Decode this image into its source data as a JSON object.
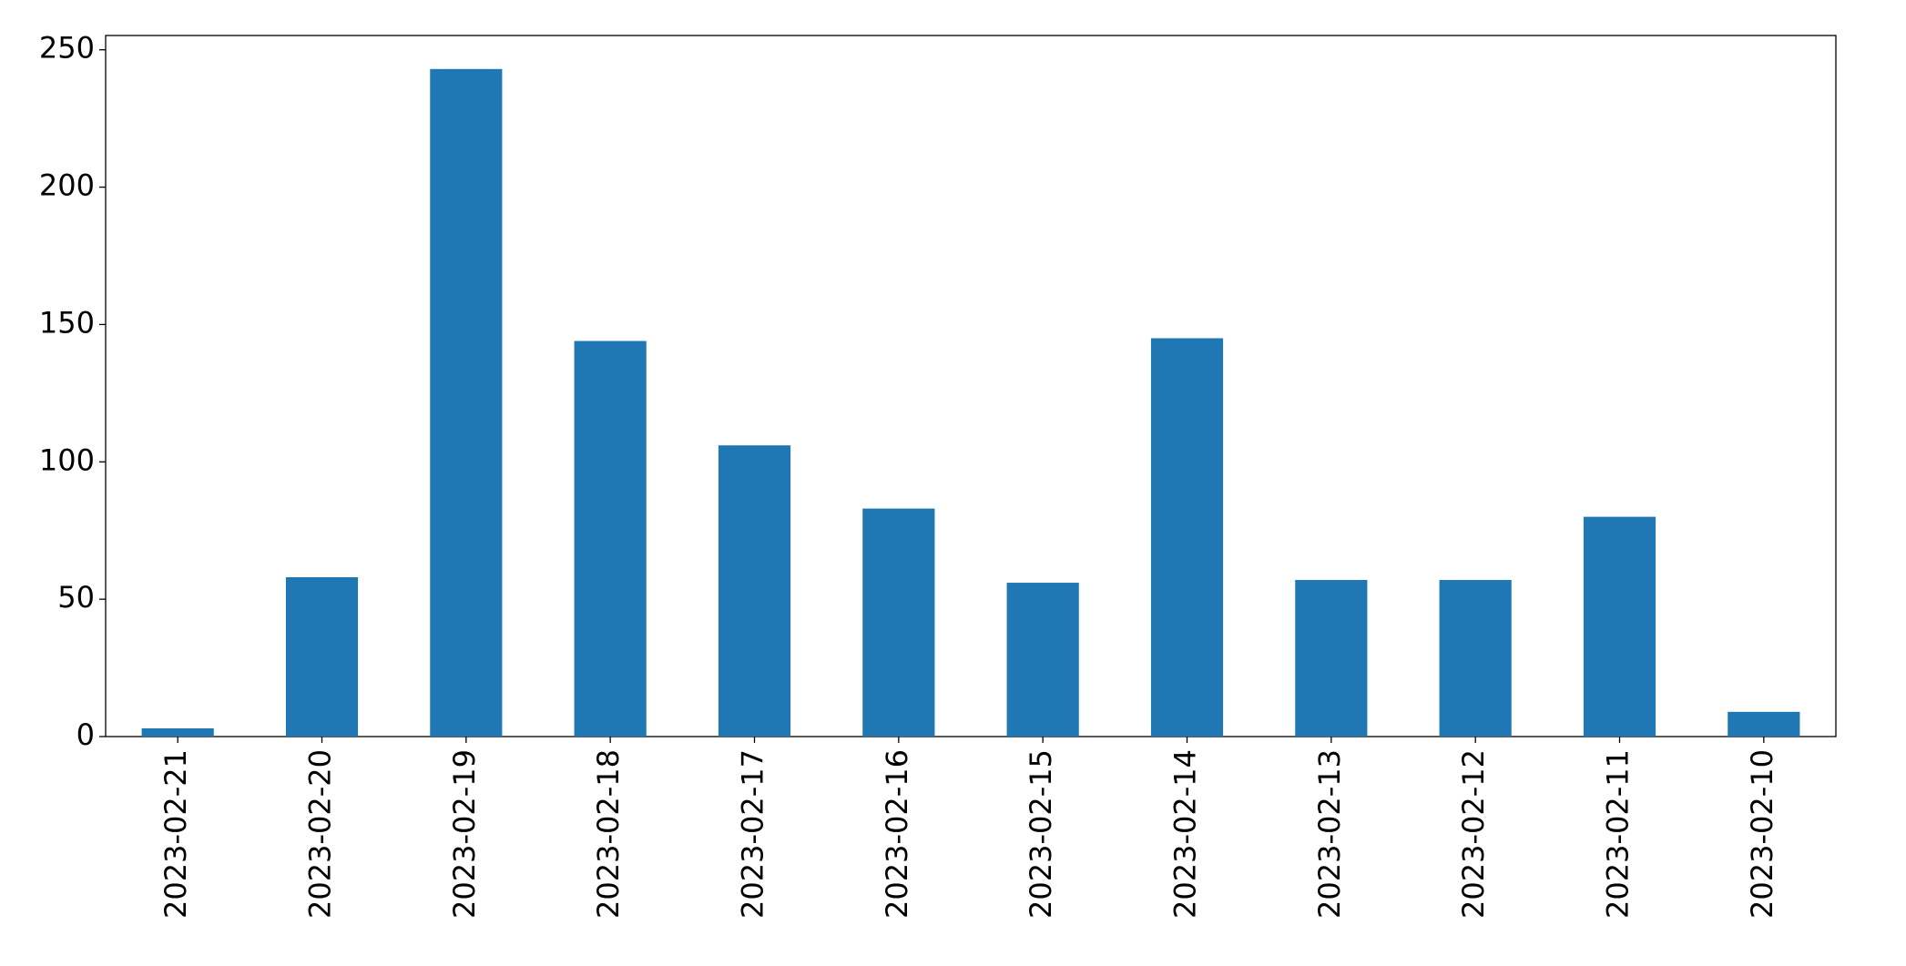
{
  "chart_data": {
    "type": "bar",
    "categories": [
      "2023-02-21",
      "2023-02-20",
      "2023-02-19",
      "2023-02-18",
      "2023-02-17",
      "2023-02-16",
      "2023-02-15",
      "2023-02-14",
      "2023-02-13",
      "2023-02-12",
      "2023-02-11",
      "2023-02-10"
    ],
    "values": [
      3,
      58,
      243,
      144,
      106,
      83,
      56,
      145,
      57,
      57,
      80,
      9
    ],
    "color": "#1f77b4",
    "ylim": [
      0,
      255.2
    ],
    "yticks": [
      0,
      50,
      100,
      150,
      200,
      250
    ],
    "grid": false
  }
}
